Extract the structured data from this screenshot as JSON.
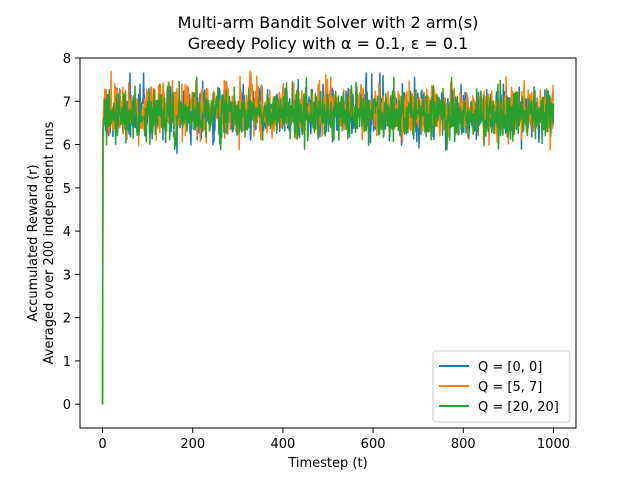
{
  "chart_data": {
    "type": "line",
    "title": [
      "Multi-arm Bandit Solver with 2 arm(s)",
      "Greedy Policy with α = 0.1, ε = 0.1"
    ],
    "xlabel": "Timestep (t)",
    "ylabel": [
      "Accumulated Reward (r)",
      "Averaged over 200 independent runs"
    ],
    "xlim": [
      -50,
      1050
    ],
    "ylim": [
      -0.55,
      8.0
    ],
    "xticks": [
      0,
      200,
      400,
      600,
      800,
      1000
    ],
    "yticks": [
      0,
      1,
      2,
      3,
      4,
      5,
      6,
      7,
      8
    ],
    "grid": false,
    "legend_position": "lower-right",
    "n_timesteps": 1000,
    "series": [
      {
        "name": "Q = [0, 0]",
        "color": "#1f77b4",
        "start_value": 0,
        "mean": 6.75,
        "low": 5.8,
        "high": 7.65
      },
      {
        "name": "Q = [5, 7]",
        "color": "#ff7f0e",
        "start_value": 0,
        "mean": 6.8,
        "low": 5.7,
        "high": 7.7
      },
      {
        "name": "Q = [20, 20]",
        "color": "#2ca02c",
        "start_value": 0,
        "mean": 6.7,
        "low": 5.8,
        "high": 7.55
      }
    ]
  }
}
